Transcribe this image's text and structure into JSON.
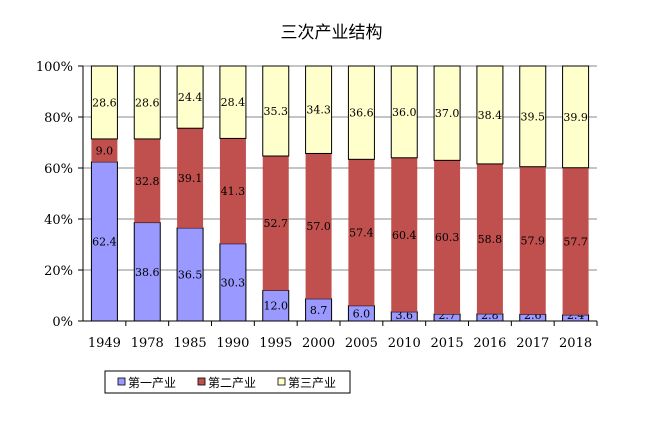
{
  "chart_data": {
    "type": "bar",
    "stacked": true,
    "percent": true,
    "title": "三次产业结构",
    "categories": [
      "1949",
      "1978",
      "1985",
      "1990",
      "1995",
      "2000",
      "2005",
      "2010",
      "2015",
      "2016",
      "2017",
      "2018"
    ],
    "series": [
      {
        "name": "第一产业",
        "color": "#9999FF",
        "values": [
          62.4,
          38.6,
          36.5,
          30.3,
          12.0,
          8.7,
          6.0,
          3.6,
          2.7,
          2.8,
          2.6,
          2.4
        ]
      },
      {
        "name": "第二产业",
        "color": "#C0504D",
        "values": [
          9.0,
          32.8,
          39.1,
          41.3,
          52.7,
          57.0,
          57.4,
          60.4,
          60.3,
          58.8,
          57.9,
          57.7
        ]
      },
      {
        "name": "第三产业",
        "color": "#FFFFCC",
        "values": [
          28.6,
          28.6,
          24.4,
          28.4,
          35.3,
          34.3,
          36.6,
          36.0,
          37.0,
          38.4,
          39.5,
          39.9
        ]
      }
    ],
    "yticks": [
      "0%",
      "20%",
      "40%",
      "60%",
      "80%",
      "100%"
    ],
    "ylim": [
      0,
      100
    ],
    "grid": true,
    "legend": "bottom"
  }
}
